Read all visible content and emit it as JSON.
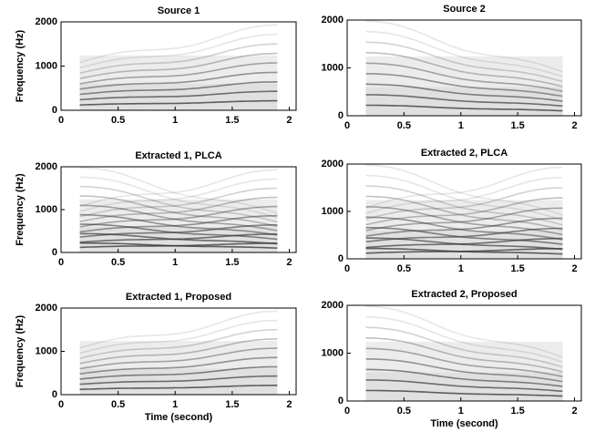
{
  "chart_data": [
    {
      "type": "spectrogram",
      "title": "Source 1",
      "ylabel": "Frequency (Hz)",
      "xlim": [
        0,
        2.06
      ],
      "xticks": [
        0,
        0.5,
        1,
        1.5,
        2
      ],
      "ylim": [
        0,
        2000
      ],
      "yticks": [
        0,
        1000,
        2000
      ]
    },
    {
      "type": "spectrogram",
      "title": "Source 2",
      "xlim": [
        0,
        2.06
      ],
      "xticks": [
        0,
        0.5,
        1,
        1.5,
        2
      ],
      "ylim": [
        0,
        2000
      ],
      "yticks": [
        0,
        1000,
        2000
      ]
    },
    {
      "type": "spectrogram",
      "title": "Extracted 1, PLCA",
      "ylabel": "Frequency (Hz)",
      "xlim": [
        0,
        2.06
      ],
      "xticks": [
        0,
        0.5,
        1,
        1.5,
        2
      ],
      "ylim": [
        0,
        2000
      ],
      "yticks": [
        0,
        1000,
        2000
      ]
    },
    {
      "type": "spectrogram",
      "title": "Extracted 2, PLCA",
      "xlim": [
        0,
        2.06
      ],
      "xticks": [
        0,
        0.5,
        1,
        1.5,
        2
      ],
      "ylim": [
        0,
        2000
      ],
      "yticks": [
        0,
        1000,
        2000
      ]
    },
    {
      "type": "spectrogram",
      "title": "Extracted 1, Proposed",
      "ylabel": "Frequency (Hz)",
      "xlabel": "Time (second)",
      "xlim": [
        0,
        2.06
      ],
      "xticks": [
        0,
        0.5,
        1,
        1.5,
        2
      ],
      "ylim": [
        0,
        2000
      ],
      "yticks": [
        0,
        1000,
        2000
      ]
    },
    {
      "type": "spectrogram",
      "title": "Extracted 2, Proposed",
      "xlabel": "Time (second)",
      "xlim": [
        0,
        2.06
      ],
      "xticks": [
        0,
        0.5,
        1,
        1.5,
        2
      ],
      "ylim": [
        0,
        2000
      ],
      "yticks": [
        0,
        1000,
        2000
      ]
    }
  ]
}
